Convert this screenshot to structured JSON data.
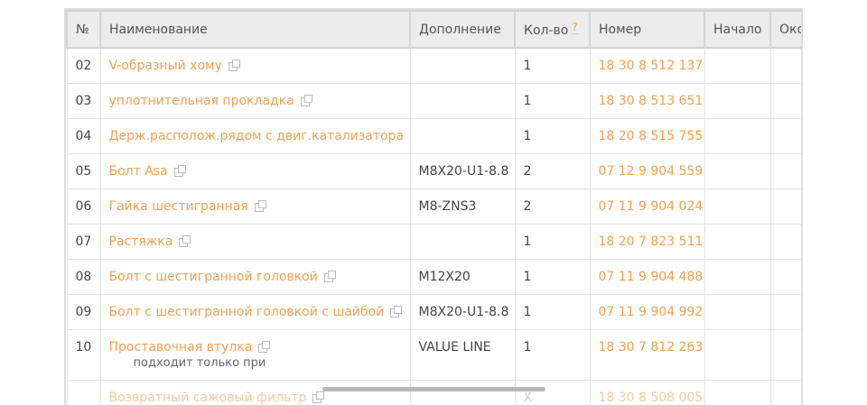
{
  "headers": [
    "№",
    "Наименование",
    "Дополнение",
    "Кол-во",
    "Номер",
    "Начало",
    "Око"
  ],
  "qty_help": "?",
  "rows": [
    {
      "no": "02",
      "name": "V-образный хому",
      "extra": "",
      "qty": "1",
      "number": "18 30 8 512 137",
      "note": ""
    },
    {
      "no": "03",
      "name": "уплотнительная прокладка",
      "extra": "",
      "qty": "1",
      "number": "18 30 8 513 651",
      "note": ""
    },
    {
      "no": "04",
      "name": "Держ.располож.рядом с двиг.катализатора",
      "extra": "",
      "qty": "1",
      "number": "18 20 8 515 755",
      "note": ""
    },
    {
      "no": "05",
      "name": "Болт Asa",
      "extra": "M8X20-U1-8.8",
      "qty": "2",
      "number": "07 12 9 904 559",
      "note": ""
    },
    {
      "no": "06",
      "name": "Гайка шестигранная",
      "extra": "M8-ZNS3",
      "qty": "2",
      "number": "07 11 9 904 024",
      "note": ""
    },
    {
      "no": "07",
      "name": "Растяжка",
      "extra": "",
      "qty": "1",
      "number": "18 20 7 823 511",
      "note": ""
    },
    {
      "no": "08",
      "name": "Болт с шестигранной головкой",
      "extra": "M12X20",
      "qty": "1",
      "number": "07 11 9 904 488",
      "note": ""
    },
    {
      "no": "09",
      "name": "Болт с шестигранной головкой с шайбой",
      "extra": "M8X20-U1-8.8",
      "qty": "1",
      "number": "07 11 9 904 992",
      "note": ""
    },
    {
      "no": "10",
      "name": "Проставочная втулка",
      "extra": "VALUE LINE",
      "qty": "1",
      "number": "18 30 7 812 263",
      "note": "подходит только при"
    },
    {
      "no": "",
      "name": "Возвратный сажовый фильтр",
      "extra": "",
      "qty": "X",
      "number": "18 30 8 508 005",
      "note": ""
    }
  ]
}
